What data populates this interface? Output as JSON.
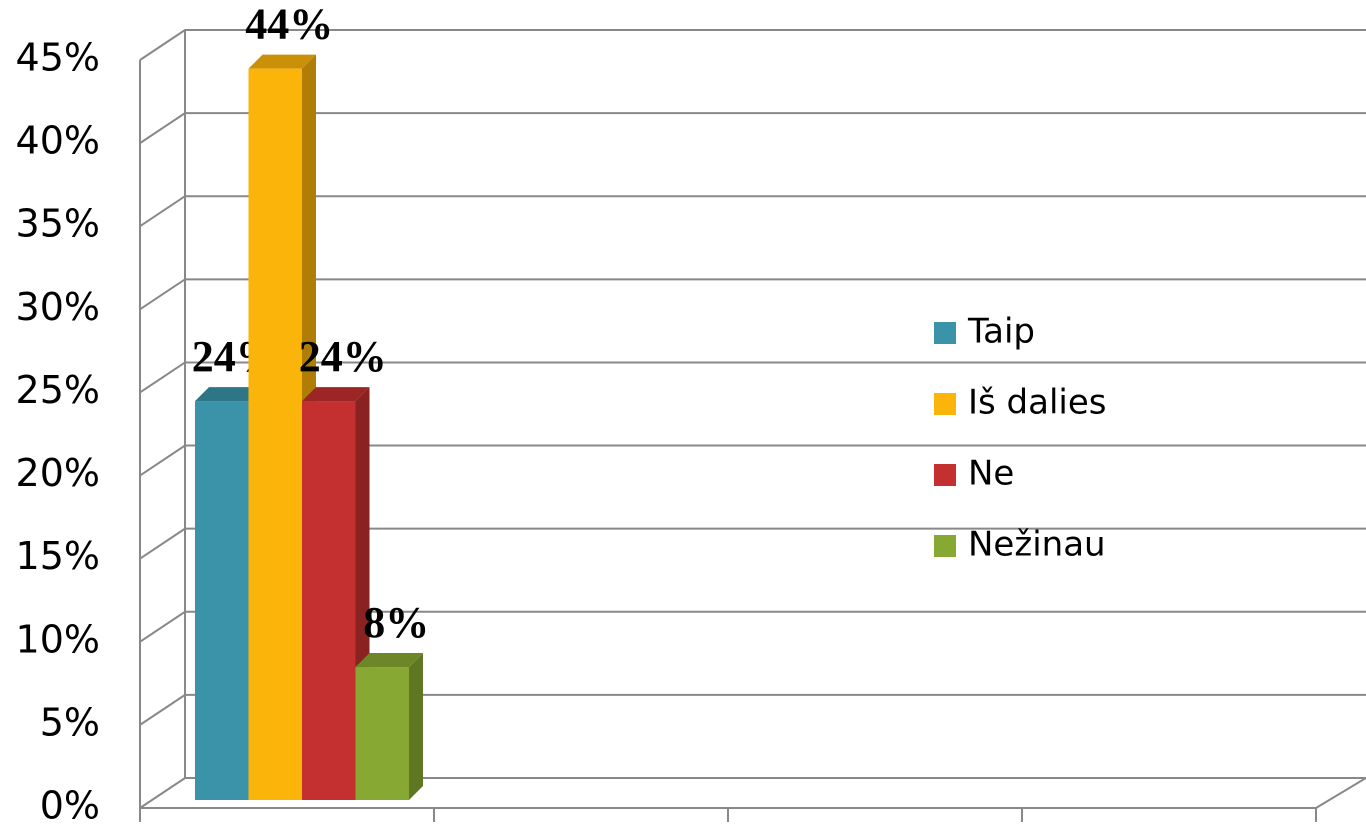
{
  "chart_data": {
    "type": "bar",
    "three_d": true,
    "categories": [
      null,
      null,
      null,
      null
    ],
    "series": [
      {
        "name": "Taip",
        "color": "#3a93a8",
        "values": [
          24,
          null,
          null,
          null
        ],
        "value_labels": [
          "24%",
          null,
          null,
          null
        ]
      },
      {
        "name": "Iš dalies",
        "color": "#fbb40a",
        "values": [
          44,
          null,
          null,
          null
        ],
        "value_labels": [
          "44%",
          null,
          null,
          null
        ]
      },
      {
        "name": "Ne",
        "color": "#c3302f",
        "values": [
          24,
          null,
          null,
          null
        ],
        "value_labels": [
          "24%",
          null,
          null,
          null
        ]
      },
      {
        "name": "Nežinau",
        "color": "#87a832",
        "values": [
          8,
          null,
          null,
          null
        ],
        "value_labels": [
          "8%",
          null,
          null,
          null
        ]
      }
    ],
    "ylim": [
      0,
      45
    ],
    "yticks": [
      {
        "value": 0,
        "label": "0%"
      },
      {
        "value": 5,
        "label": "5%"
      },
      {
        "value": 10,
        "label": "10%"
      },
      {
        "value": 15,
        "label": "15%"
      },
      {
        "value": 20,
        "label": "20%"
      },
      {
        "value": 25,
        "label": "25%"
      },
      {
        "value": 30,
        "label": "30%"
      },
      {
        "value": 35,
        "label": "35%"
      },
      {
        "value": 40,
        "label": "40%"
      },
      {
        "value": 45,
        "label": "45%"
      }
    ],
    "grid": true,
    "legend": "right"
  }
}
